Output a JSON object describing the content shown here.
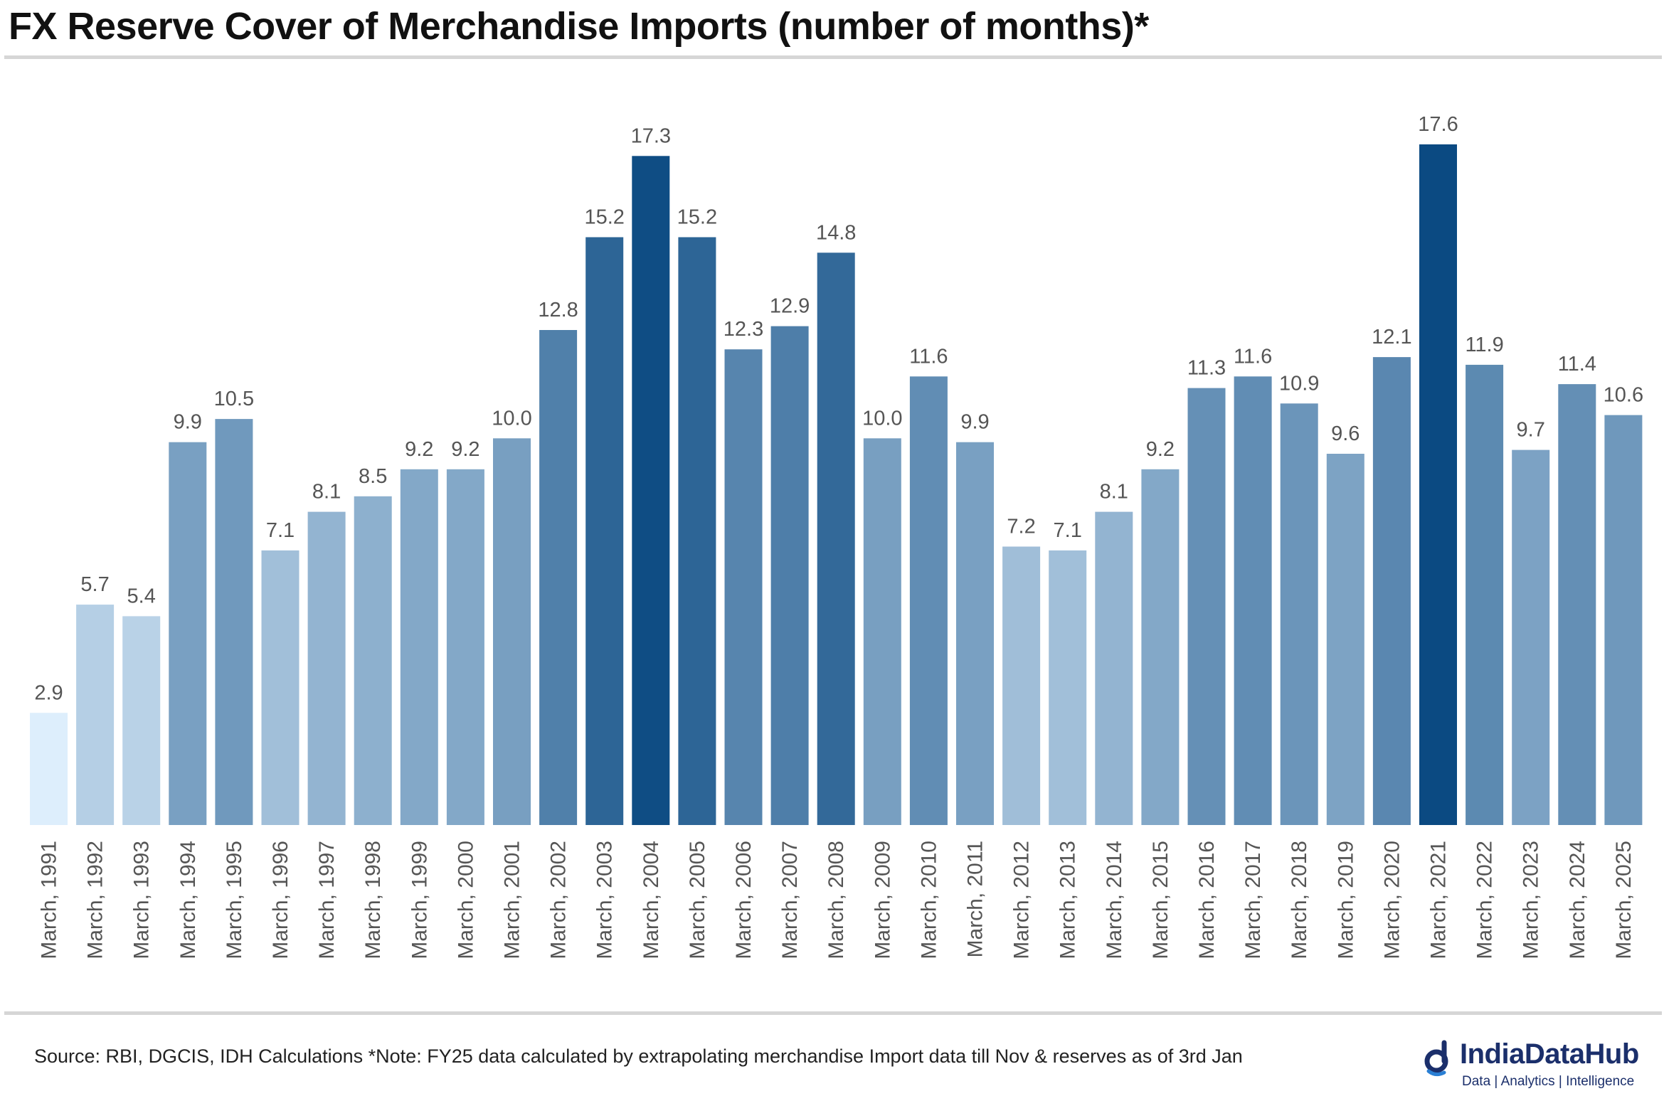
{
  "header": {
    "title": "FX Reserve Cover of Merchandise Imports (number of months)*"
  },
  "footer": {
    "source": "Source: RBI, DGCIS, IDH Calculations *Note: FY25 data calculated by extrapolating merchandise Import data till Nov & reserves as of 3rd Jan"
  },
  "brand": {
    "name": "IndiaDataHub",
    "tagline": "Data | Analytics | Intelligence",
    "logo_icon": "indiadatahub-logo-icon",
    "color": "#1b2f6b"
  },
  "chart_data": {
    "type": "bar",
    "title": "FX Reserve Cover of Merchandise Imports (number of months)*",
    "xlabel": "",
    "ylabel": "",
    "ylim": [
      0,
      17.6
    ],
    "grid": false,
    "legend": "none",
    "color_scale": {
      "low": "#ddeefc",
      "high": "#0b4a82"
    },
    "categories": [
      "March, 1991",
      "March, 1992",
      "March, 1993",
      "March, 1994",
      "March, 1995",
      "March, 1996",
      "March, 1997",
      "March, 1998",
      "March, 1999",
      "March, 2000",
      "March, 2001",
      "March, 2002",
      "March, 2003",
      "March, 2004",
      "March, 2005",
      "March, 2006",
      "March, 2007",
      "March, 2008",
      "March, 2009",
      "March, 2010",
      "March, 2011",
      "March, 2012",
      "March, 2013",
      "March, 2014",
      "March, 2015",
      "March, 2016",
      "March, 2017",
      "March, 2018",
      "March, 2019",
      "March, 2020",
      "March, 2021",
      "March, 2022",
      "March, 2023",
      "March, 2024",
      "March, 2025"
    ],
    "values": [
      2.9,
      5.7,
      5.4,
      9.9,
      10.5,
      7.1,
      8.1,
      8.5,
      9.2,
      9.2,
      10.0,
      12.8,
      15.2,
      17.3,
      15.2,
      12.3,
      12.9,
      14.8,
      10.0,
      11.6,
      9.9,
      7.2,
      7.1,
      8.1,
      9.2,
      11.3,
      11.6,
      10.9,
      9.6,
      12.1,
      17.6,
      11.9,
      9.7,
      11.4,
      10.6
    ],
    "labels": [
      "2.9",
      "5.7",
      "5.4",
      "9.9",
      "10.5",
      "7.1",
      "8.1",
      "8.5",
      "9.2",
      "9.2",
      "10.0",
      "12.8",
      "15.2",
      "17.3",
      "15.2",
      "12.3",
      "12.9",
      "14.8",
      "10.0",
      "11.6",
      "9.9",
      "7.2",
      "7.1",
      "8.1",
      "9.2",
      "11.3",
      "11.6",
      "10.9",
      "9.6",
      "12.1",
      "17.6",
      "11.9",
      "9.7",
      "11.4",
      "10.6"
    ]
  }
}
